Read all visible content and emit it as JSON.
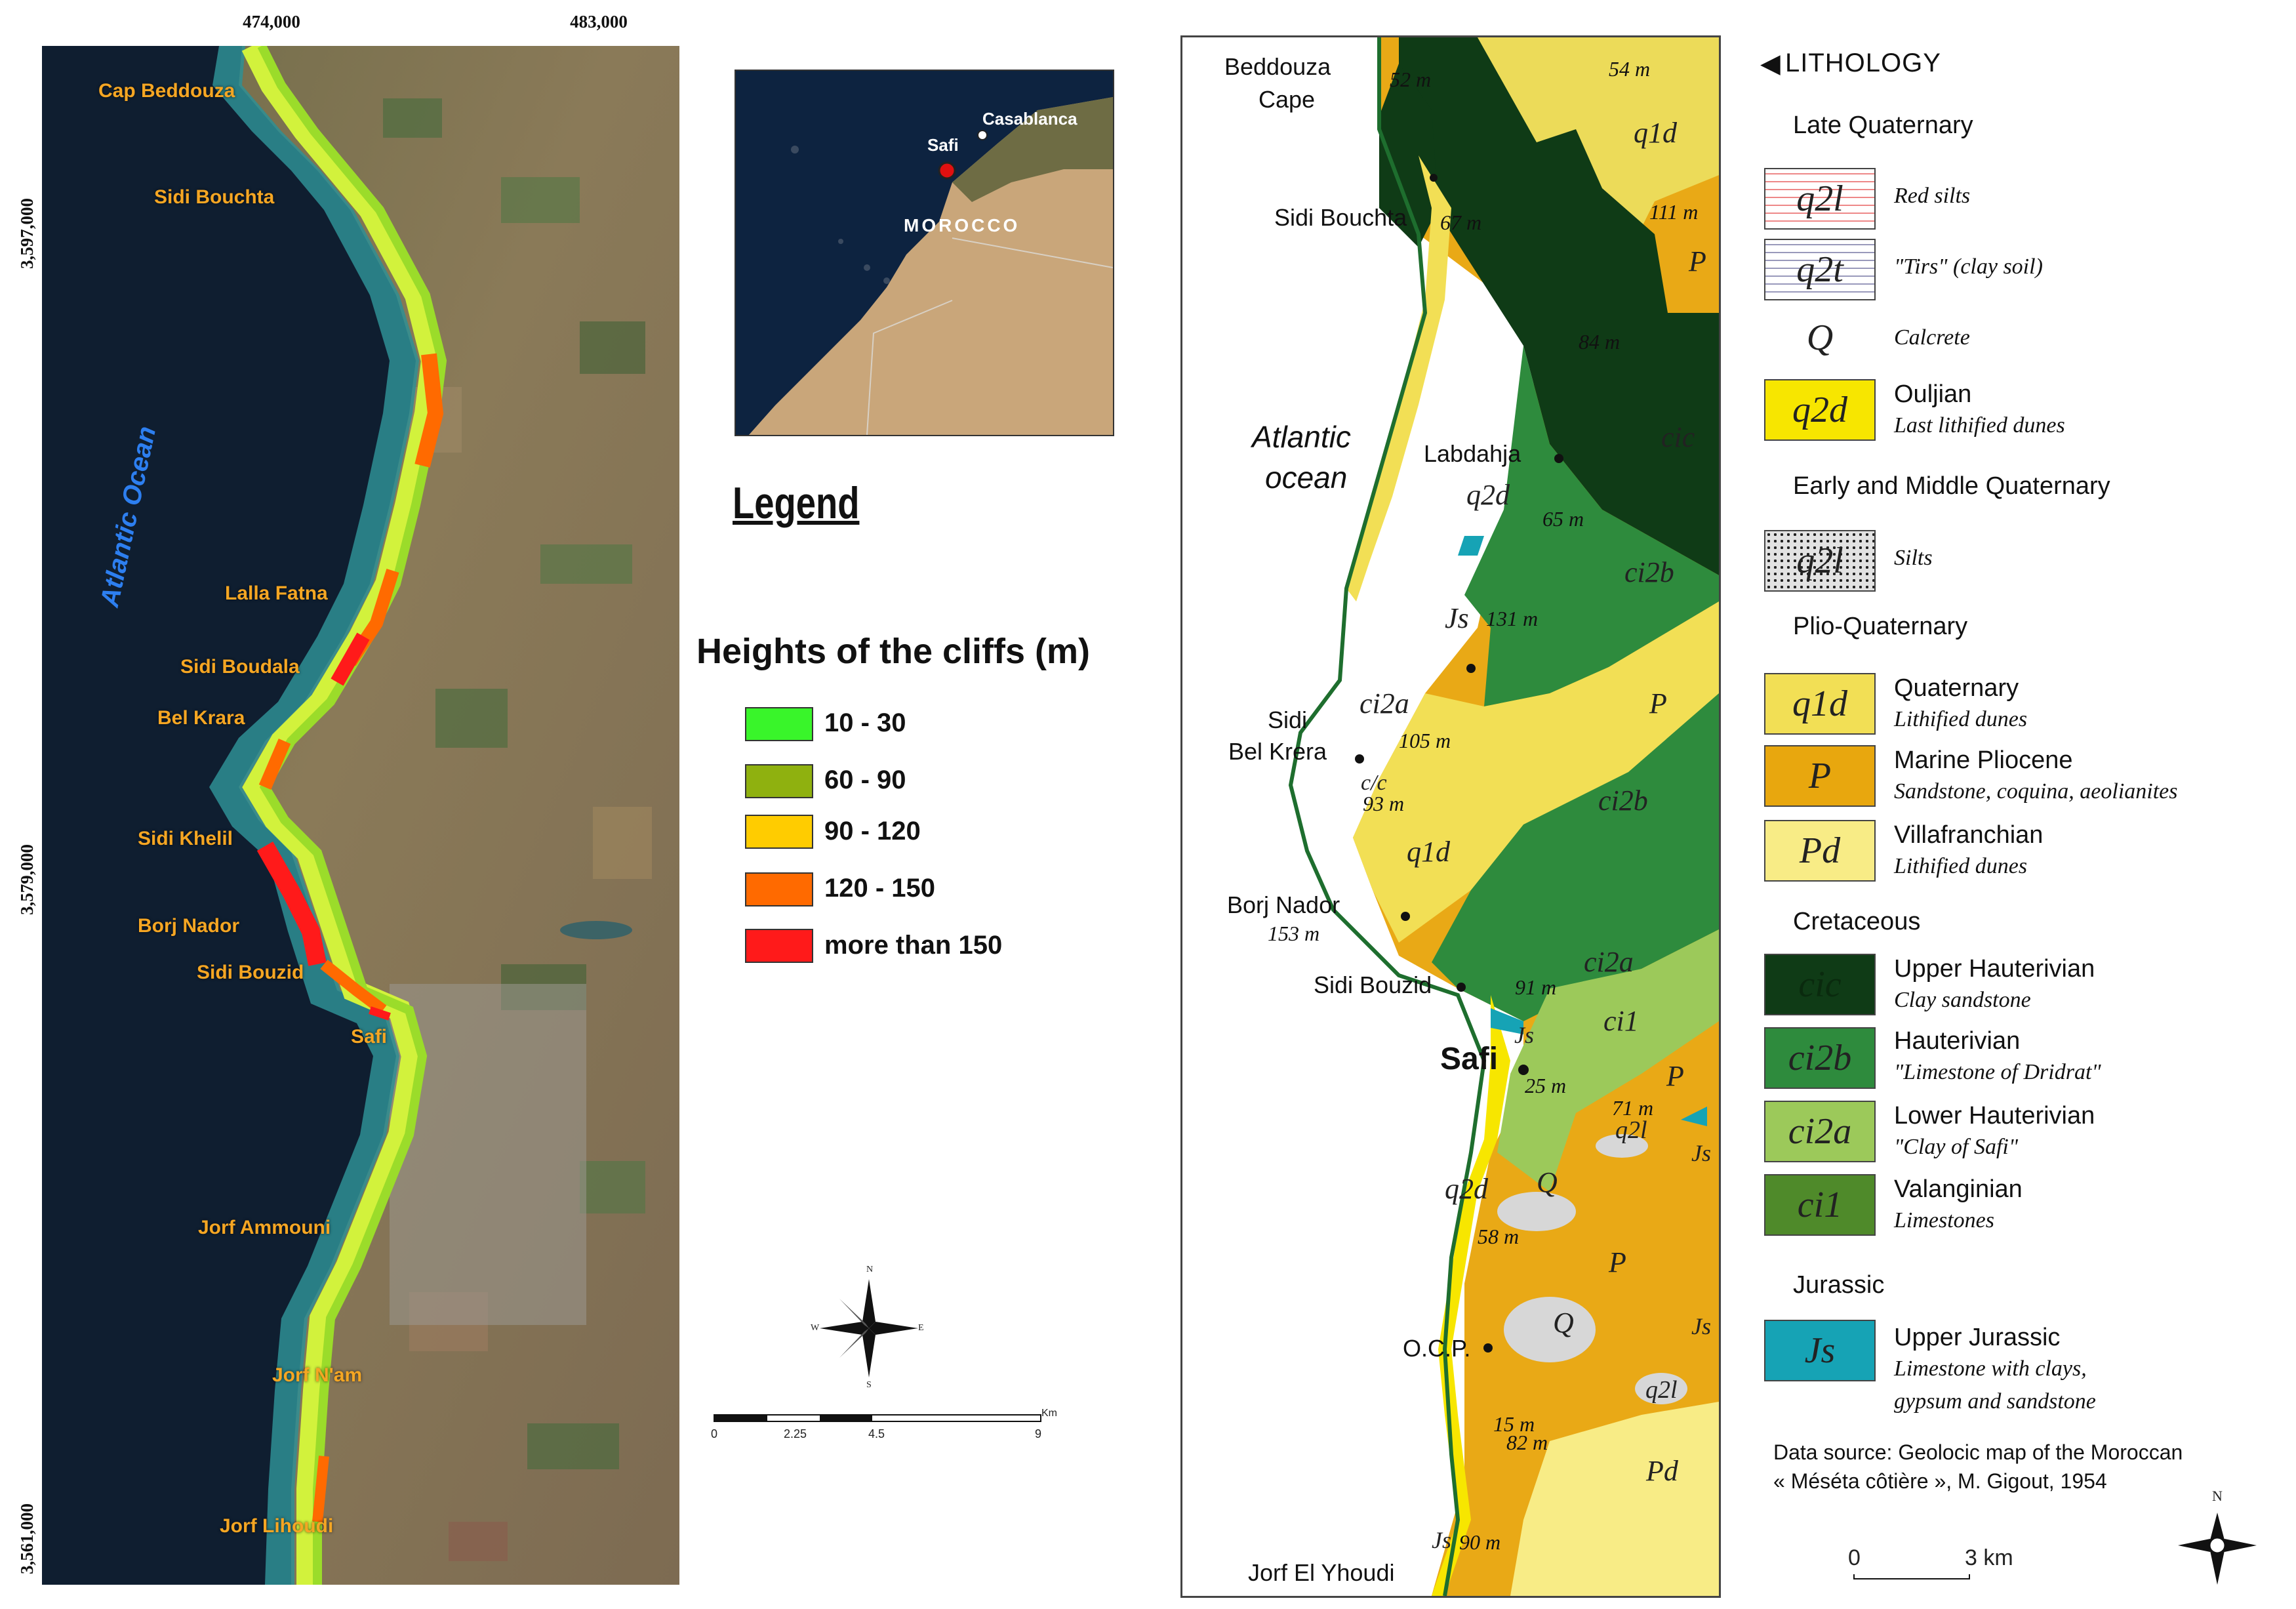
{
  "left_map": {
    "coords_top": [
      "474,000",
      "483,000"
    ],
    "coords_left": [
      "3,597,000",
      "3,579,000",
      "3,561,000"
    ],
    "ocean_label": "Atlantic Ocean",
    "places": [
      "Cap Beddouza",
      "Sidi Bouchta",
      "Lalla Fatna",
      "Sidi Boudala",
      "Bel Krara",
      "Sidi Khelil",
      "Borj Nador",
      "Sidi Bouzid",
      "Safi",
      "Jorf Ammouni",
      "Jorf N'am",
      "Jorf Lihoudi"
    ]
  },
  "inset": {
    "labels": [
      "Casablanca",
      "Safi",
      "MOROCCO"
    ]
  },
  "legend": {
    "title": "Legend",
    "subtitle": "Heights of the cliffs (m)",
    "items": [
      {
        "label": "10 - 30",
        "color": "#39f52a"
      },
      {
        "label": "60 - 90",
        "color": "#8fb10f"
      },
      {
        "label": "90 - 120",
        "color": "#ffcc00"
      },
      {
        "label": "120 - 150",
        "color": "#ff6a00"
      },
      {
        "label": "more than 150",
        "color": "#ff1a1a"
      }
    ],
    "compass": {
      "n": "N",
      "s": "S",
      "e": "E",
      "w": "W"
    },
    "scale": {
      "ticks": [
        "0",
        "2.25",
        "4.5",
        "9"
      ],
      "unit": "Km"
    }
  },
  "geo_map": {
    "places": [
      "Beddouza",
      "Cape",
      "Sidi Bouchta",
      "Labdahja",
      "Sidi",
      "Bel Krera",
      "Borj Nador",
      "153 m",
      "Sidi Bouzid",
      "Safi",
      "O.C.P.",
      "Jorf El Yhoudi"
    ],
    "ocean": [
      "Atlantic",
      "ocean"
    ],
    "heights": [
      "52 m",
      "54 m",
      "67 m",
      "111 m",
      "84 m",
      "65 m",
      "131 m",
      "105 m",
      "93 m",
      "91 m",
      "25 m",
      "71 m",
      "58 m",
      "15 m",
      "82 m",
      "90 m"
    ],
    "codes": [
      "q1d",
      "P",
      "cic",
      "q2d",
      "ci2b",
      "Js",
      "ci2a",
      "c/c",
      "P",
      "q1d",
      "ci2b",
      "ci2a",
      "ci1",
      "Js",
      "P",
      "q2l",
      "Js",
      "q2d",
      "Q",
      "P",
      "Q",
      "Js",
      "q2l",
      "Pd",
      "Js",
      "q1d"
    ]
  },
  "lithology": {
    "title": "LITHOLOGY",
    "groups": [
      {
        "name": "Late Quaternary",
        "items": [
          {
            "code": "q2l",
            "title": "",
            "sub": "Red silts",
            "color": "#ffffff"
          },
          {
            "code": "q2t",
            "title": "",
            "sub": "\"Tirs\" (clay soil)",
            "color": "#ffffff"
          },
          {
            "code": "Q",
            "title": "",
            "sub": "Calcrete",
            "color": "#ffffff"
          },
          {
            "code": "q2d",
            "title": "Ouljian",
            "sub": "Last lithified dunes",
            "color": "#f7e600"
          }
        ]
      },
      {
        "name": "Early and Middle Quaternary",
        "items": [
          {
            "code": "q2l",
            "title": "",
            "sub": "Silts",
            "color": "#d9d9d9"
          }
        ]
      },
      {
        "name": "Plio-Quaternary",
        "items": [
          {
            "code": "q1d",
            "title": "Quaternary",
            "sub": "Lithified dunes",
            "color": "#f2df55"
          },
          {
            "code": "P",
            "title": "Marine  Pliocene",
            "sub": "Sandstone, coquina, aeolianites",
            "color": "#e8a70e"
          },
          {
            "code": "Pd",
            "title": "Villafranchian",
            "sub": "Lithified dunes",
            "color": "#f8ec86"
          }
        ]
      },
      {
        "name": "Cretaceous",
        "items": [
          {
            "code": "cic",
            "title": "Upper  Hauterivian",
            "sub": "Clay sandstone",
            "color": "#0f3b16"
          },
          {
            "code": "ci2b",
            "title": "Hauterivian",
            "sub": "\"Limestone of Dridrat\"",
            "color": "#2e8b3d"
          },
          {
            "code": "ci2a",
            "title": "Lower  Hauterivian",
            "sub": "\"Clay of Safi\"",
            "color": "#9cc95a"
          },
          {
            "code": "ci1",
            "title": "Valanginian",
            "sub": "Limestones",
            "color": "#4f8a2a"
          }
        ]
      },
      {
        "name": "Jurassic",
        "items": [
          {
            "code": "Js",
            "title": "Upper  Jurassic",
            "sub": "Limestone with clays,",
            "sub2": "gypsum and sandstone",
            "color": "#16a3b5"
          }
        ]
      }
    ],
    "source_line1": "Data source: Geolocic map of the Moroccan",
    "source_line2": "« Méséta côtière », M. Gigout, 1954",
    "scale": {
      "zero": "0",
      "label": "3  km"
    },
    "north": "N"
  }
}
